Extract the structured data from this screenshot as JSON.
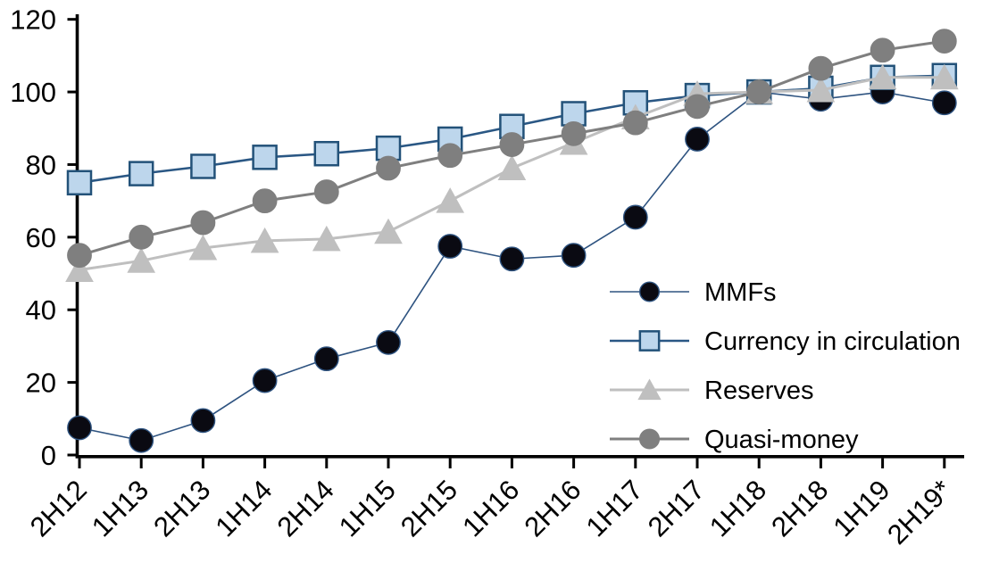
{
  "chart_data": {
    "type": "line",
    "title": "",
    "xlabel": "",
    "ylabel": "",
    "ylim": [
      0,
      120
    ],
    "y_ticks": [
      0,
      20,
      40,
      60,
      80,
      100,
      120
    ],
    "grid": false,
    "legend_position": "inside-right",
    "background": "#FFFFFF",
    "axis_color": "#000000",
    "categories": [
      "2H12",
      "1H13",
      "2H13",
      "1H14",
      "2H14",
      "1H15",
      "2H15",
      "1H16",
      "2H16",
      "1H17",
      "2H17",
      "1H18",
      "2H18",
      "1H19",
      "2H19*"
    ],
    "series": [
      {
        "name": "MMFs",
        "marker": "circle",
        "line_color": "#2E5380",
        "line_width": 1.6,
        "marker_fill": "#0A0A12",
        "marker_stroke": "#2E5380",
        "values": [
          7.5,
          4,
          9.5,
          20.5,
          26.5,
          31,
          57.5,
          54,
          55,
          65.5,
          87,
          100,
          98,
          100,
          97
        ]
      },
      {
        "name": "Currency in circulation",
        "marker": "square",
        "line_color": "#2A5784",
        "line_width": 2.6,
        "marker_fill": "#BDD6EC",
        "marker_stroke": "#235279",
        "values": [
          75,
          77.5,
          79.5,
          82,
          83,
          84.5,
          87,
          90.5,
          94,
          97,
          99,
          100,
          101,
          104,
          104.5
        ]
      },
      {
        "name": "Reserves",
        "marker": "triangle",
        "line_color": "#BFBFBF",
        "line_width": 3,
        "marker_fill": "#BFBFBF",
        "marker_stroke": "#BFBFBF",
        "values": [
          51,
          53.5,
          57,
          59,
          59.5,
          61.5,
          70,
          79,
          86,
          93,
          99.5,
          100,
          100.5,
          104,
          104
        ]
      },
      {
        "name": "Quasi-money",
        "marker": "circle",
        "line_color": "#7F7F7F",
        "line_width": 3,
        "marker_fill": "#7F7F7F",
        "marker_stroke": "#7F7F7F",
        "values": [
          55,
          60,
          64,
          70,
          72.5,
          79,
          82.5,
          85.5,
          88.5,
          91.5,
          96,
          100,
          106.5,
          111.5,
          114
        ]
      }
    ],
    "legend_entries": [
      "MMFs",
      "Currency in circulation",
      "Reserves",
      "Quasi-money"
    ]
  }
}
